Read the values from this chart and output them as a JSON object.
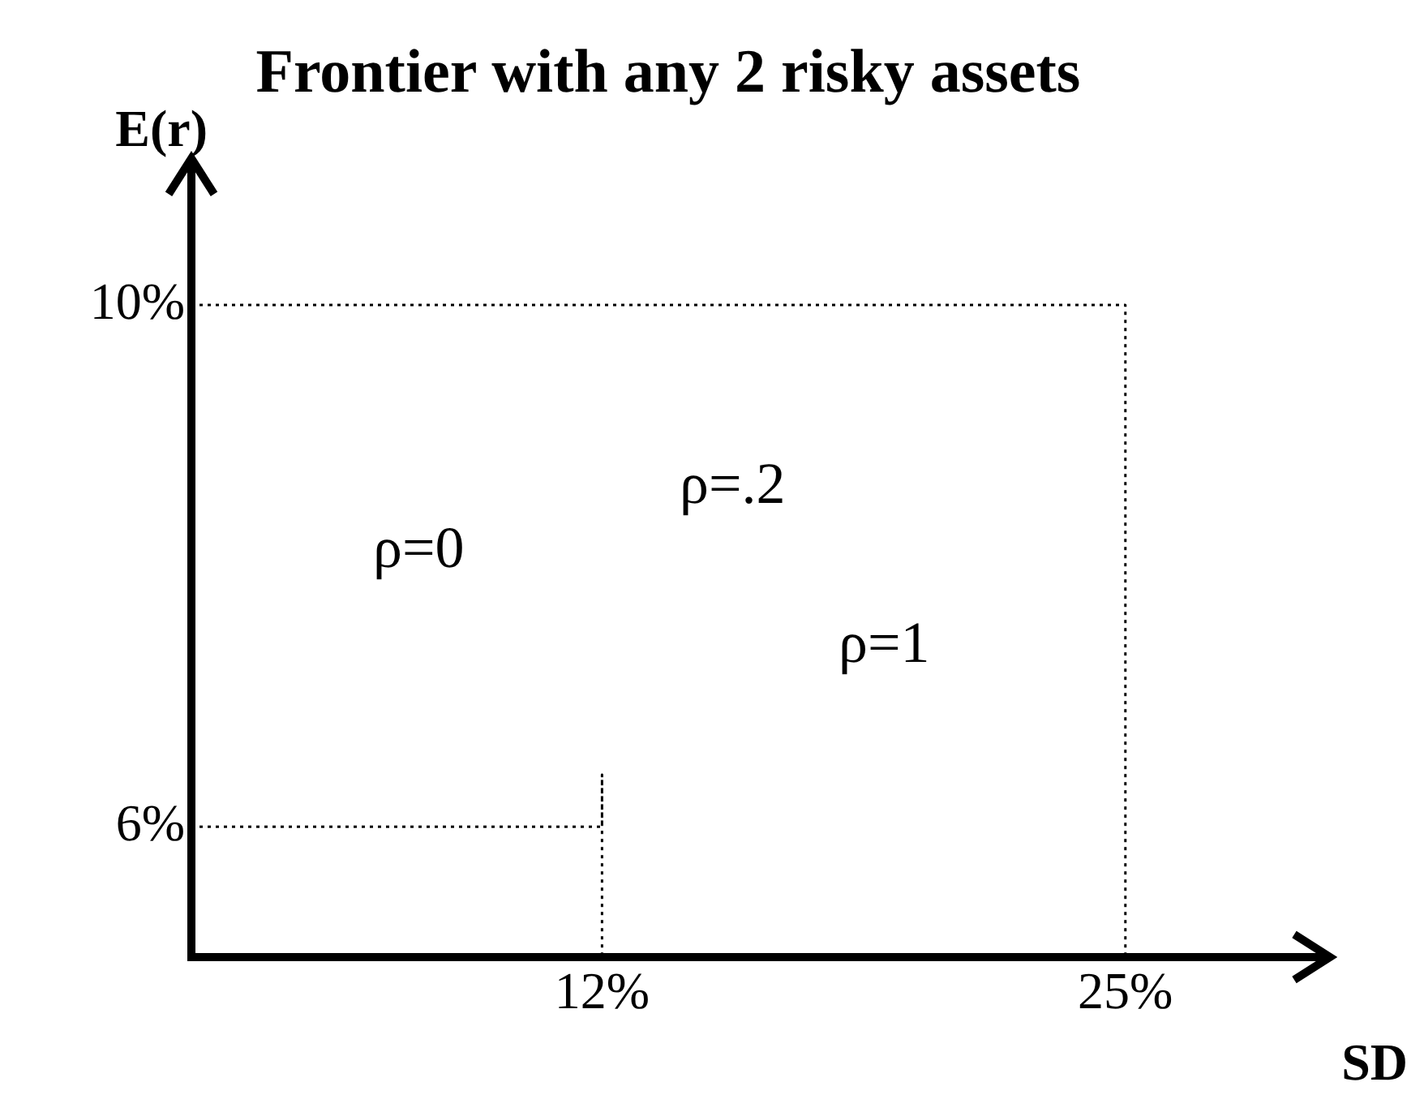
{
  "chart_data": {
    "type": "line",
    "title": "Frontier with any 2 risky assets",
    "xlabel": "SD",
    "ylabel": "E(r)",
    "series": [
      {
        "color": "#000000",
        "x": [
          1.8,
          12,
          12,
          12
        ],
        "values": [
          6,
          6,
          6.4,
          5
        ]
      },
      {
        "color": "#000000",
        "x": [
          1.8,
          25,
          25
        ],
        "values": [
          10,
          10,
          5
        ]
      }
    ],
    "xlim": [
      1.8,
      30
    ],
    "ylim": [
      5,
      11.1
    ],
    "xticks": [
      {
        "value": 12,
        "label": "12%"
      },
      {
        "value": 25,
        "label": "25%"
      }
    ],
    "yticks": [
      {
        "value": 6,
        "label": "6%"
      },
      {
        "value": 10,
        "label": "10%"
      }
    ],
    "annotations": [
      "ρ=0",
      "ρ=.2",
      "ρ=1"
    ],
    "line_style": "dotted",
    "marker": "none",
    "grid": false,
    "legend": false
  }
}
